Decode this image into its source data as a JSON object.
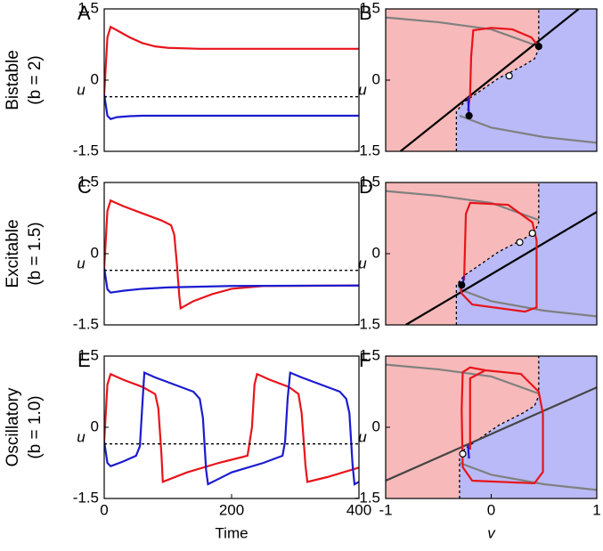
{
  "chart_data": [
    {
      "type": "line",
      "label": "A",
      "row_label": "Bistable",
      "row_param": "(b = 2)",
      "ylabel": "u",
      "xlim": [
        0,
        400
      ],
      "ylim": [
        -1.5,
        1.5
      ],
      "yticks": [
        1.5,
        0,
        -1.5
      ],
      "series": [
        {
          "color": "#e8141b",
          "x": [
            0,
            5,
            10,
            20,
            40,
            60,
            80,
            100,
            150,
            400
          ],
          "values": [
            -0.3,
            0.9,
            1.12,
            1.05,
            0.9,
            0.78,
            0.71,
            0.68,
            0.66,
            0.66
          ]
        },
        {
          "color": "#1b1bd0",
          "x": [
            0,
            5,
            10,
            20,
            40,
            60,
            80,
            100,
            150,
            400
          ],
          "values": [
            -0.3,
            -0.75,
            -0.82,
            -0.78,
            -0.76,
            -0.75,
            -0.75,
            -0.75,
            -0.75,
            -0.75
          ]
        },
        {
          "color": "#000000",
          "style": "dashed",
          "x": [
            0,
            400
          ],
          "values": [
            -0.35,
            -0.35
          ]
        }
      ]
    },
    {
      "type": "phase",
      "label": "B",
      "ylabel": "u",
      "xlim": [
        -1,
        1
      ],
      "ylim": [
        -1.5,
        1.5
      ],
      "yticks": [
        1.5,
        0,
        -1.5
      ],
      "separatrix": {
        "fill": [
          "#f7b9b9",
          "#babaf8"
        ],
        "x": [
          -0.33,
          -0.33,
          -0.25,
          -0.15,
          0.07,
          0.3,
          0.41,
          0.45,
          0.45
        ],
        "values": [
          -1.5,
          -0.66,
          -0.45,
          -0.3,
          0.04,
          0.3,
          0.45,
          0.66,
          1.5
        ]
      },
      "series": [
        {
          "color": "#808080",
          "x": [
            -1,
            -0.5,
            0,
            0.45
          ],
          "values": [
            1.32,
            1.22,
            1.07,
            0.71
          ]
        },
        {
          "color": "#808080",
          "x": [
            -0.3,
            0,
            0.5,
            1
          ],
          "values": [
            -0.75,
            -1.0,
            -1.2,
            -1.32
          ]
        },
        {
          "color": "#000000",
          "x": [
            -0.86,
            0.83
          ],
          "values": [
            -1.5,
            1.5
          ]
        },
        {
          "color": "#e8141b",
          "x": [
            -0.22,
            -0.2,
            -0.19,
            -0.17,
            0,
            0.2,
            0.38,
            0.45
          ],
          "values": [
            -0.65,
            -0.3,
            0.5,
            1.05,
            1.1,
            1.07,
            0.9,
            0.71
          ]
        },
        {
          "color": "#1b1bd0",
          "x": [
            -0.22,
            -0.21
          ],
          "values": [
            -0.35,
            -0.75
          ]
        }
      ],
      "fixed_points": {
        "x": [
          -0.21,
          0.17,
          0.45
        ],
        "values": [
          -0.75,
          0.09,
          0.71
        ],
        "filled": [
          true,
          false,
          true
        ]
      }
    },
    {
      "type": "line",
      "label": "C",
      "row_label": "Excitable",
      "row_param": "(b = 1.5)",
      "ylabel": "u",
      "xlim": [
        0,
        400
      ],
      "ylim": [
        -1.5,
        1.5
      ],
      "yticks": [
        1.5,
        0,
        -1.5
      ],
      "series": [
        {
          "color": "#e8141b",
          "x": [
            0,
            5,
            10,
            30,
            60,
            90,
            105,
            110,
            114,
            118,
            120,
            140,
            170,
            200,
            250,
            400
          ],
          "values": [
            -0.3,
            0.9,
            1.12,
            1.0,
            0.85,
            0.7,
            0.6,
            0.4,
            -0.2,
            -0.9,
            -1.15,
            -1.0,
            -0.85,
            -0.74,
            -0.68,
            -0.67
          ]
        },
        {
          "color": "#1b1bd0",
          "x": [
            0,
            5,
            10,
            30,
            60,
            100,
            200,
            400
          ],
          "values": [
            -0.3,
            -0.75,
            -0.82,
            -0.78,
            -0.74,
            -0.71,
            -0.68,
            -0.67
          ]
        },
        {
          "color": "#000000",
          "style": "dashed",
          "x": [
            0,
            400
          ],
          "values": [
            -0.35,
            -0.35
          ]
        }
      ]
    },
    {
      "type": "phase",
      "label": "D",
      "ylabel": "u",
      "xlim": [
        -1,
        1
      ],
      "ylim": [
        -1.5,
        1.5
      ],
      "yticks": [
        1.5,
        0,
        -1.5
      ],
      "separatrix": {
        "fill": [
          "#f7b9b9",
          "#babaf8"
        ],
        "x": [
          -0.33,
          -0.33,
          -0.25,
          -0.15,
          0.07,
          0.3,
          0.41,
          0.45,
          0.45
        ],
        "values": [
          -1.5,
          -0.66,
          -0.45,
          -0.3,
          0.04,
          0.3,
          0.45,
          0.66,
          1.5
        ]
      },
      "series": [
        {
          "color": "#808080",
          "x": [
            -1,
            -0.5,
            0,
            0.45
          ],
          "values": [
            1.32,
            1.22,
            1.07,
            0.71
          ]
        },
        {
          "color": "#808080",
          "x": [
            -0.3,
            0,
            0.5,
            1
          ],
          "values": [
            -0.75,
            -1.0,
            -1.2,
            -1.32
          ]
        },
        {
          "color": "#000000",
          "x": [
            -0.81,
            1
          ],
          "values": [
            -1.5,
            0.88
          ]
        },
        {
          "color": "#e8141b",
          "x": [
            -0.257,
            -0.24,
            -0.2,
            0.16,
            0.39,
            0.43,
            0.43,
            0.32,
            -0.18,
            -0.28,
            -0.29
          ],
          "values": [
            -0.56,
            0.84,
            1.07,
            1.03,
            0.66,
            0.28,
            -1.13,
            -1.22,
            -1.07,
            -0.84,
            -0.66
          ]
        },
        {
          "color": "#1b1bd0",
          "x": [
            -0.26,
            -0.27
          ],
          "values": [
            -0.47,
            -0.69
          ]
        }
      ],
      "fixed_points": {
        "x": [
          -0.28,
          0.27,
          0.39
        ],
        "values": [
          -0.66,
          0.24,
          0.43
        ],
        "filled": [
          true,
          false,
          false
        ]
      }
    },
    {
      "type": "line",
      "label": "E",
      "row_label": "Oscillatory",
      "row_param": "(b = 1.0)",
      "ylabel": "u",
      "xlabel": "Time",
      "xlim": [
        0,
        400
      ],
      "ylim": [
        -1.5,
        1.5
      ],
      "yticks": [
        1.5,
        0,
        -1.5
      ],
      "xticks": [
        0,
        200,
        400
      ],
      "series": [
        {
          "color": "#e8141b",
          "x": [
            0,
            5,
            10,
            30,
            60,
            80,
            85,
            90,
            92,
            130,
            180,
            225,
            232,
            236,
            240,
            260,
            290,
            305,
            310,
            316,
            319,
            350,
            400
          ],
          "values": [
            -0.3,
            0.9,
            1.12,
            1.0,
            0.85,
            0.7,
            0.4,
            -0.6,
            -1.15,
            -0.95,
            -0.75,
            -0.6,
            0.0,
            0.9,
            1.12,
            1.0,
            0.85,
            0.7,
            0.3,
            -0.8,
            -1.15,
            -1.05,
            -0.85
          ]
        },
        {
          "color": "#1b1bd0",
          "x": [
            0,
            5,
            10,
            30,
            50,
            56,
            60,
            63,
            80,
            110,
            140,
            150,
            155,
            160,
            163,
            200,
            250,
            280,
            284,
            288,
            292,
            310,
            340,
            370,
            380,
            385,
            390,
            393,
            400
          ],
          "values": [
            -0.3,
            -0.75,
            -0.82,
            -0.72,
            -0.6,
            -0.4,
            0.5,
            1.15,
            1.05,
            0.9,
            0.75,
            0.6,
            0.2,
            -0.9,
            -1.2,
            -0.95,
            -0.75,
            -0.6,
            -0.3,
            0.6,
            1.15,
            1.05,
            0.9,
            0.75,
            0.6,
            0.3,
            -0.8,
            -1.2,
            -1.15
          ]
        },
        {
          "color": "#000000",
          "style": "dashed",
          "x": [
            0,
            400
          ],
          "values": [
            -0.35,
            -0.35
          ]
        }
      ]
    },
    {
      "type": "phase",
      "label": "F",
      "ylabel": "u",
      "xlabel": "v",
      "xlim": [
        -1,
        1
      ],
      "ylim": [
        -1.5,
        1.5
      ],
      "yticks": [
        1.5,
        0,
        -1.5
      ],
      "xticks": [
        -1,
        0,
        1
      ],
      "separatrix": {
        "fill": [
          "#f7b9b9",
          "#babaf8"
        ],
        "x": [
          -0.3,
          -0.3,
          -0.25,
          -0.15,
          0.07,
          0.3,
          0.41,
          0.45,
          0.45
        ],
        "values": [
          -1.5,
          -0.66,
          -0.45,
          -0.3,
          0.04,
          0.3,
          0.45,
          0.66,
          1.5
        ]
      },
      "series": [
        {
          "color": "#808080",
          "x": [
            -1,
            -0.5,
            0,
            0.45
          ],
          "values": [
            1.32,
            1.22,
            1.07,
            0.71
          ]
        },
        {
          "color": "#808080",
          "x": [
            -0.3,
            0,
            0.5,
            1
          ],
          "values": [
            -0.75,
            -1.0,
            -1.2,
            -1.32
          ]
        },
        {
          "color": "#444444",
          "x": [
            -1,
            1
          ],
          "values": [
            -1.125,
            0.84
          ]
        },
        {
          "color": "#e8141b",
          "x": [
            -0.2,
            -0.2,
            -0.055,
            0.28,
            0.45,
            0.49,
            0.49,
            0.41,
            -0.18,
            -0.27,
            -0.28,
            -0.27,
            -0.2,
            -0.055
          ],
          "values": [
            -0.47,
            1.03,
            1.2,
            1.125,
            0.75,
            0.28,
            -0.94,
            -1.18,
            -1.125,
            -0.84,
            0.375,
            1.16,
            1.26,
            1.2
          ]
        },
        {
          "color": "#1b1bd0",
          "x": [
            -0.22,
            -0.21
          ],
          "values": [
            -0.375,
            -0.66
          ]
        }
      ],
      "fixed_points": {
        "x": [
          -0.27
        ],
        "values": [
          -0.56
        ],
        "filled": [
          false
        ]
      }
    }
  ]
}
